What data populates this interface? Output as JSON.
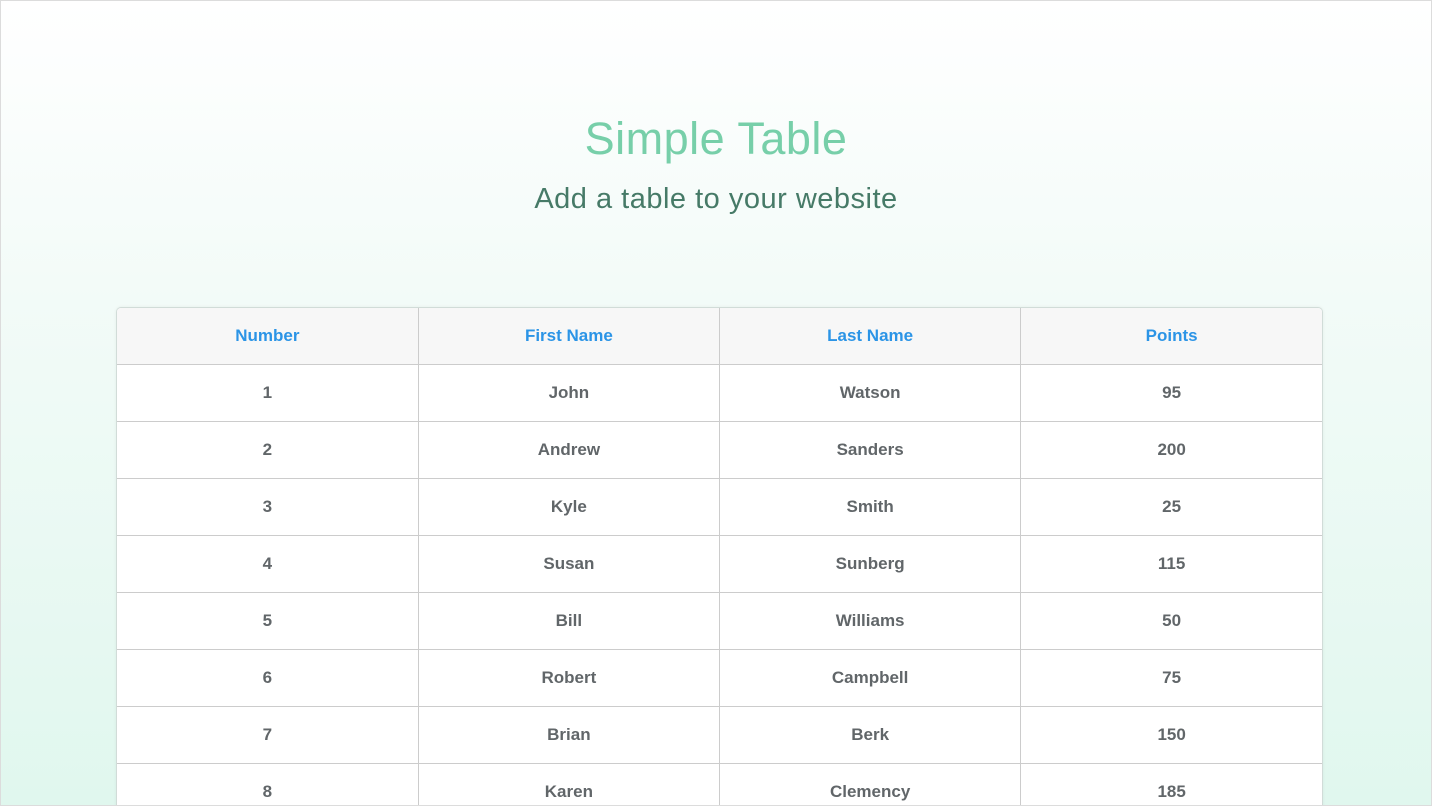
{
  "header": {
    "title": "Simple Table",
    "subtitle": "Add a table to your website"
  },
  "table": {
    "columns": [
      "Number",
      "First Name",
      "Last Name",
      "Points"
    ],
    "rows": [
      [
        "1",
        "John",
        "Watson",
        "95"
      ],
      [
        "2",
        "Andrew",
        "Sanders",
        "200"
      ],
      [
        "3",
        "Kyle",
        "Smith",
        "25"
      ],
      [
        "4",
        "Susan",
        "Sunberg",
        "115"
      ],
      [
        "5",
        "Bill",
        "Williams",
        "50"
      ],
      [
        "6",
        "Robert",
        "Campbell",
        "75"
      ],
      [
        "7",
        "Brian",
        "Berk",
        "150"
      ],
      [
        "8",
        "Karen",
        "Clemency",
        "185"
      ]
    ]
  },
  "colors": {
    "title": "#77cfa9",
    "subtitle": "#467a67",
    "header_text": "#2b94e6",
    "cell_text": "#616669"
  }
}
